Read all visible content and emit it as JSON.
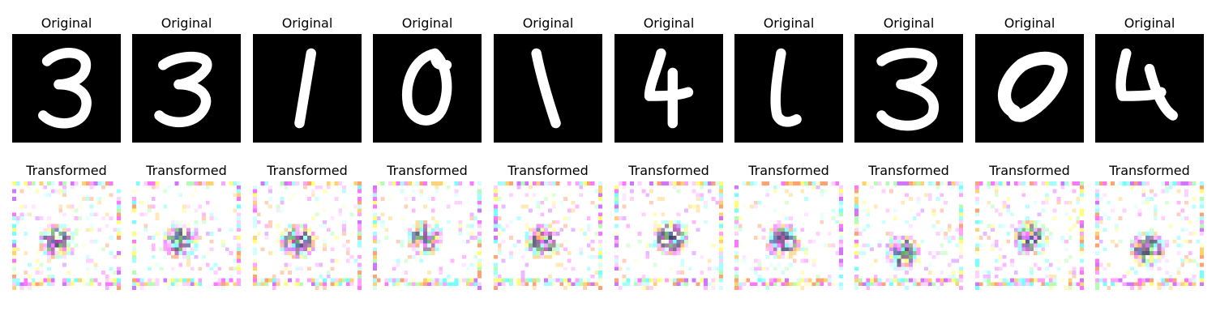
{
  "original_title": "Original",
  "transformed_title": "Transformed",
  "digits": [
    "3",
    "3",
    "1",
    "0",
    "1",
    "4",
    "1",
    "3",
    "0",
    "4"
  ]
}
